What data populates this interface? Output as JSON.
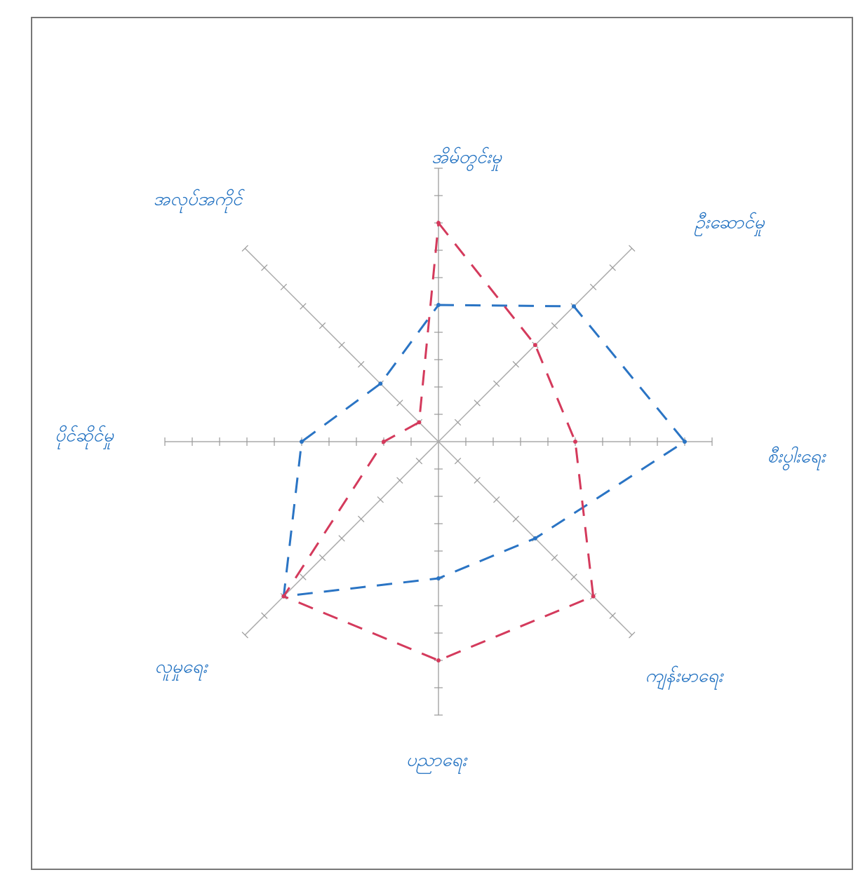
{
  "chart_data": {
    "type": "radar",
    "categories": [
      "အိမ်တွင်းမှု",
      "ဦးဆောင်မှု",
      "စီးပွါးရေး",
      "ကျန်းမာရေး",
      "ပညာရေး",
      "လူမှုရေး",
      "ပိုင်ဆိုင်မှု",
      "အလုပ်အကိုင်"
    ],
    "series": [
      {
        "color": "#2a74c4",
        "values": [
          5,
          7,
          9,
          5,
          5,
          8,
          5,
          3
        ]
      },
      {
        "color": "#d43a5c",
        "values": [
          8,
          5,
          5,
          8,
          8,
          8,
          2,
          1
        ]
      }
    ],
    "rlim": [
      0,
      10
    ],
    "rticks": [
      1,
      2,
      3,
      4,
      5,
      6,
      7,
      8,
      9,
      10
    ]
  }
}
